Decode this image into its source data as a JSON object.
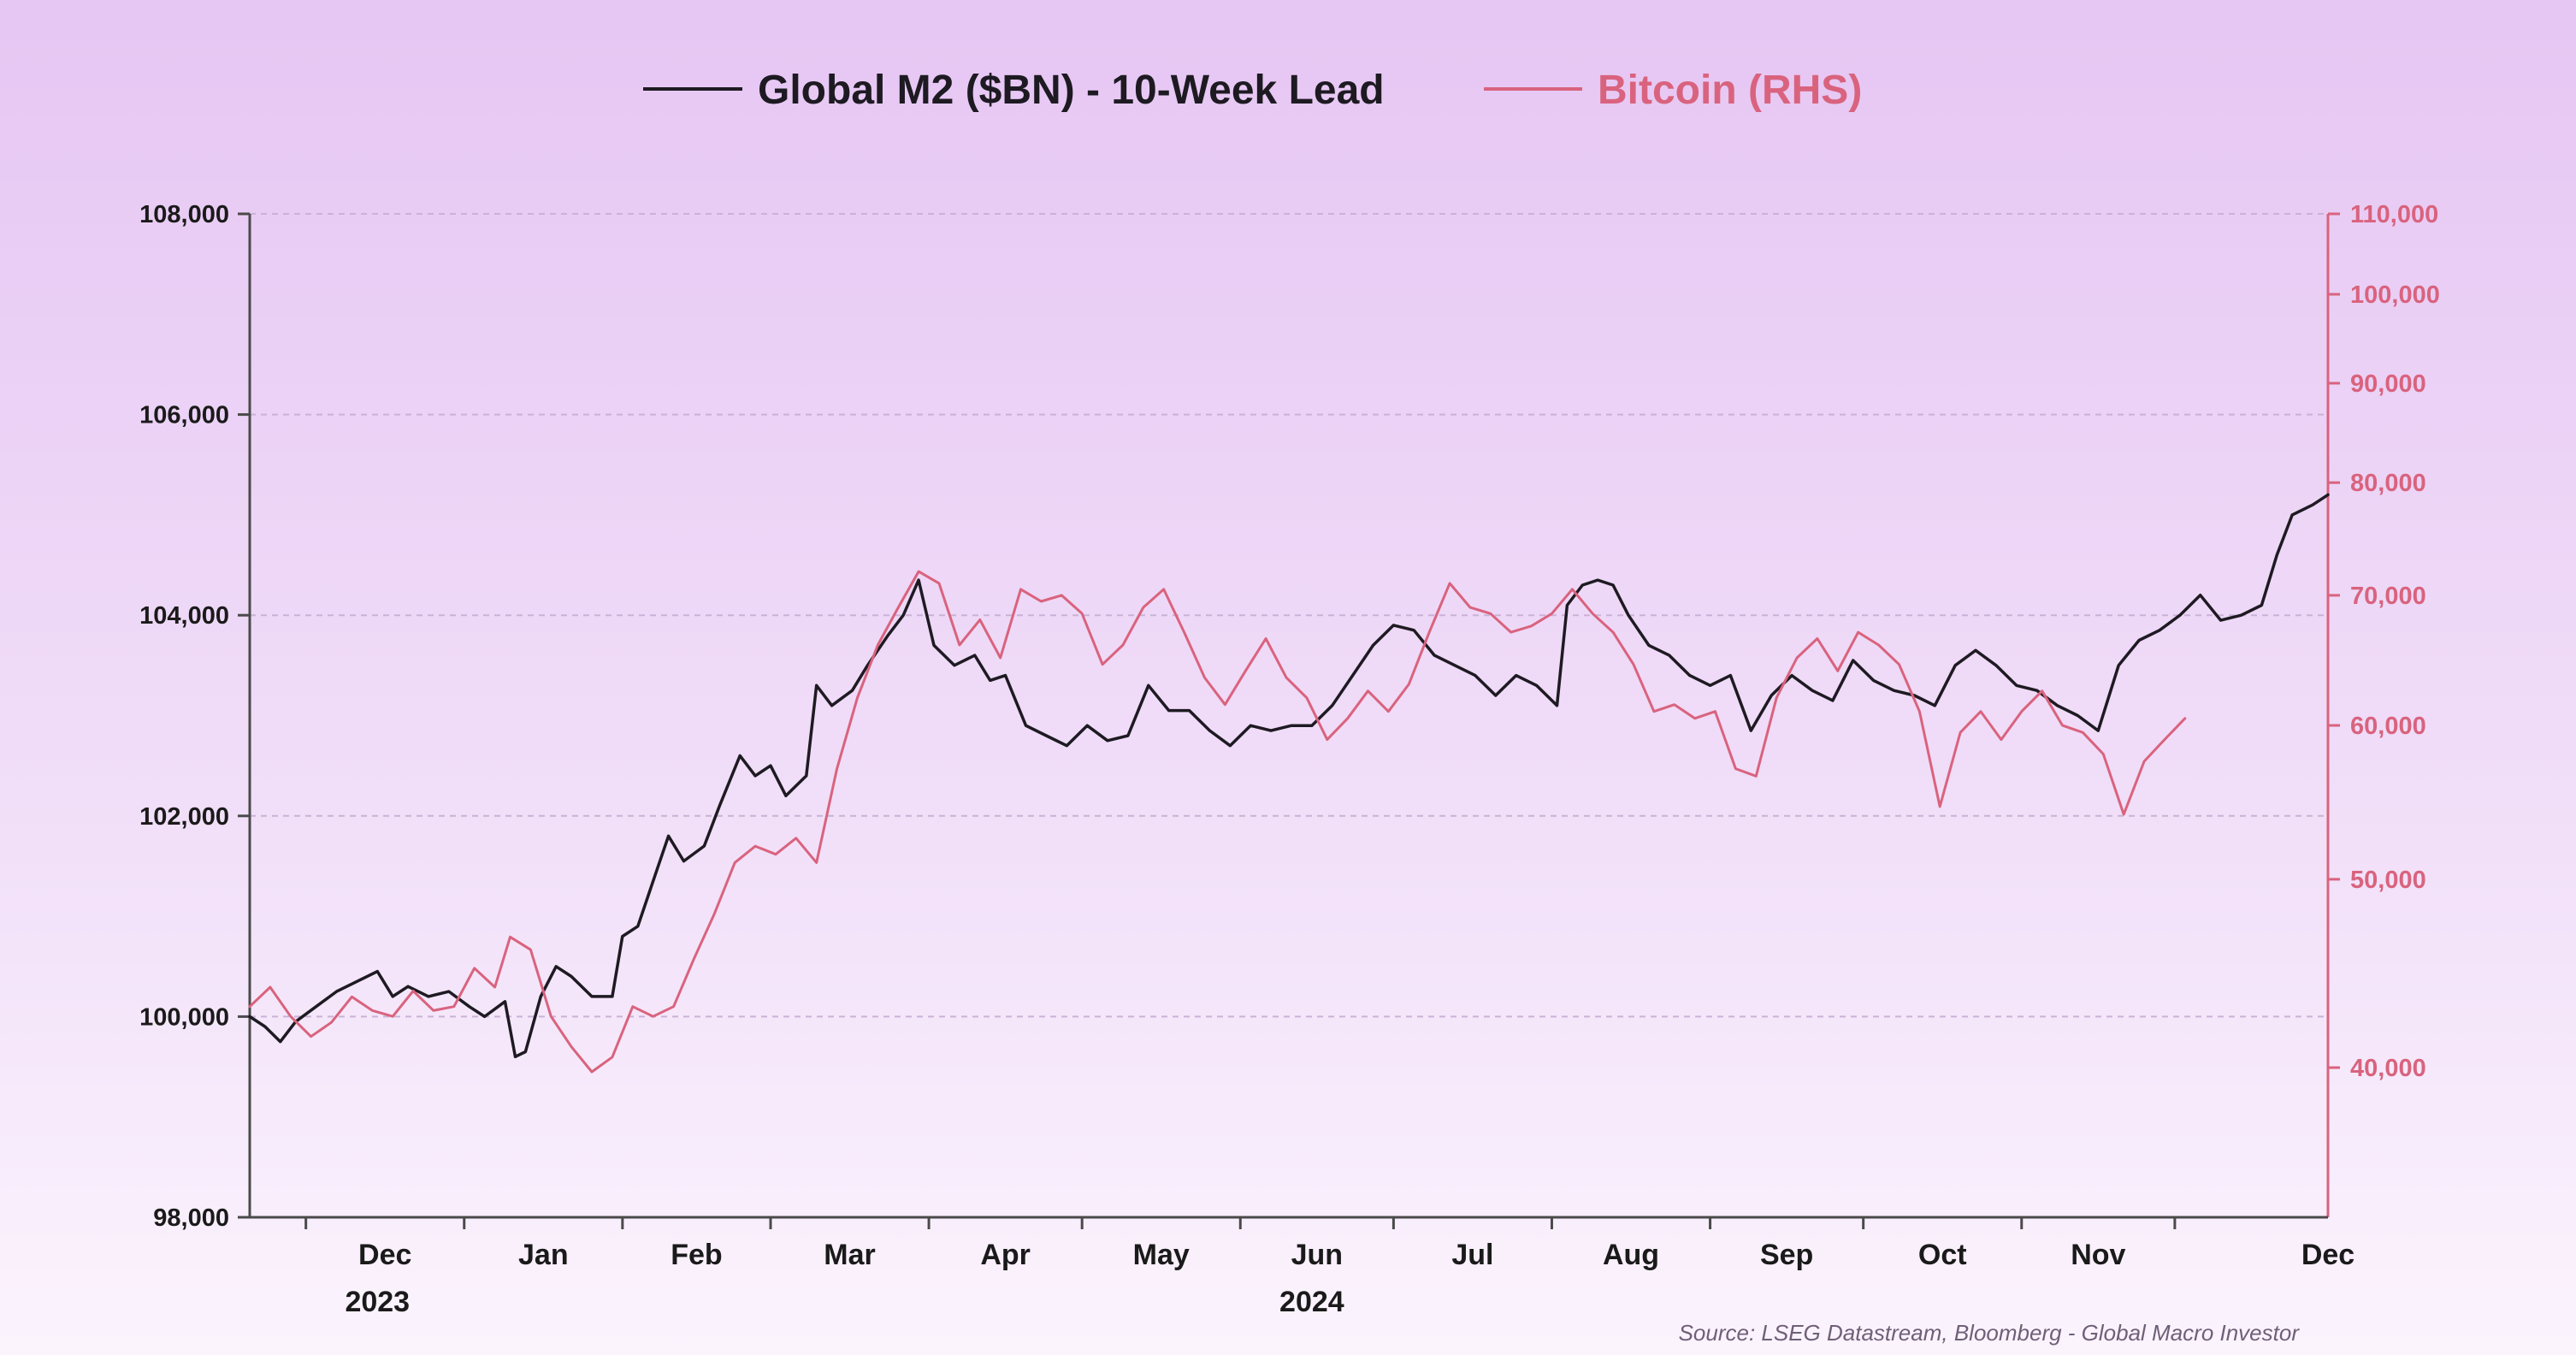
{
  "colors": {
    "m2": "#1e1a22",
    "btc": "#d9637e",
    "grid": "#c9b2d6",
    "axis": "#4a4a4a"
  },
  "legend": {
    "m2_label": "Global M2 ($BN) - 10-Week Lead",
    "btc_label": "Bitcoin (RHS)"
  },
  "source": "Source: LSEG Datastream, Bloomberg - Global Macro Investor",
  "chart_data": {
    "type": "line",
    "title": "",
    "legend_position": "top-center",
    "grid": "horizontal dashed at left-axis ticks",
    "x_range": [
      "2023-11-20",
      "2024-12-31"
    ],
    "x_ticks": [
      {
        "label": "Dec",
        "date": "2023-12-01"
      },
      {
        "label": "Jan",
        "date": "2024-01-01"
      },
      {
        "label": "Feb",
        "date": "2024-02-01"
      },
      {
        "label": "Mar",
        "date": "2024-03-01"
      },
      {
        "label": "Apr",
        "date": "2024-04-01"
      },
      {
        "label": "May",
        "date": "2024-05-01"
      },
      {
        "label": "Jun",
        "date": "2024-06-01"
      },
      {
        "label": "Jul",
        "date": "2024-07-01"
      },
      {
        "label": "Aug",
        "date": "2024-08-01"
      },
      {
        "label": "Sep",
        "date": "2024-09-01"
      },
      {
        "label": "Oct",
        "date": "2024-10-01"
      },
      {
        "label": "Nov",
        "date": "2024-11-01"
      },
      {
        "label": "Dec",
        "date": "2024-12-01"
      }
    ],
    "year_labels": [
      {
        "label": "2023",
        "date": "2023-12-15"
      },
      {
        "label": "2024",
        "date": "2024-06-15"
      }
    ],
    "y_left": {
      "range": [
        98000,
        108000
      ],
      "ticks": [
        98000,
        100000,
        102000,
        104000,
        106000,
        108000
      ],
      "tick_labels": [
        "98,000",
        "100,000",
        "102,000",
        "104,000",
        "106,000",
        "108,000"
      ]
    },
    "y_right": {
      "scale": "log",
      "range": [
        33500,
        110000
      ],
      "ticks": [
        40000,
        50000,
        60000,
        70000,
        80000,
        90000,
        100000,
        110000
      ],
      "tick_labels": [
        "40,000",
        "50,000",
        "60,000",
        "70,000",
        "80,000",
        "90,000",
        "100,000",
        "110,000"
      ]
    },
    "series": [
      {
        "name": "Global M2 ($BN) - 10-Week Lead",
        "axis": "left",
        "points": [
          [
            "2023-11-20",
            100000
          ],
          [
            "2023-11-23",
            99900
          ],
          [
            "2023-11-26",
            99750
          ],
          [
            "2023-11-29",
            99950
          ],
          [
            "2023-12-03",
            100100
          ],
          [
            "2023-12-07",
            100250
          ],
          [
            "2023-12-11",
            100350
          ],
          [
            "2023-12-15",
            100450
          ],
          [
            "2023-12-18",
            100200
          ],
          [
            "2023-12-21",
            100300
          ],
          [
            "2023-12-25",
            100200
          ],
          [
            "2023-12-29",
            100250
          ],
          [
            "2024-01-02",
            100100
          ],
          [
            "2024-01-05",
            100000
          ],
          [
            "2024-01-09",
            100150
          ],
          [
            "2024-01-11",
            99600
          ],
          [
            "2024-01-13",
            99650
          ],
          [
            "2024-01-16",
            100200
          ],
          [
            "2024-01-19",
            100500
          ],
          [
            "2024-01-22",
            100400
          ],
          [
            "2024-01-26",
            100200
          ],
          [
            "2024-01-30",
            100200
          ],
          [
            "2024-02-01",
            100800
          ],
          [
            "2024-02-04",
            100900
          ],
          [
            "2024-02-08",
            101500
          ],
          [
            "2024-02-10",
            101800
          ],
          [
            "2024-02-13",
            101550
          ],
          [
            "2024-02-17",
            101700
          ],
          [
            "2024-02-20",
            102100
          ],
          [
            "2024-02-24",
            102600
          ],
          [
            "2024-02-27",
            102400
          ],
          [
            "2024-03-01",
            102500
          ],
          [
            "2024-03-04",
            102200
          ],
          [
            "2024-03-08",
            102400
          ],
          [
            "2024-03-10",
            103300
          ],
          [
            "2024-03-13",
            103100
          ],
          [
            "2024-03-17",
            103250
          ],
          [
            "2024-03-20",
            103500
          ],
          [
            "2024-03-24",
            103800
          ],
          [
            "2024-03-27",
            104000
          ],
          [
            "2024-03-30",
            104350
          ],
          [
            "2024-04-02",
            103700
          ],
          [
            "2024-04-06",
            103500
          ],
          [
            "2024-04-10",
            103600
          ],
          [
            "2024-04-13",
            103350
          ],
          [
            "2024-04-16",
            103400
          ],
          [
            "2024-04-20",
            102900
          ],
          [
            "2024-04-24",
            102800
          ],
          [
            "2024-04-28",
            102700
          ],
          [
            "2024-05-02",
            102900
          ],
          [
            "2024-05-06",
            102750
          ],
          [
            "2024-05-10",
            102800
          ],
          [
            "2024-05-14",
            103300
          ],
          [
            "2024-05-18",
            103050
          ],
          [
            "2024-05-22",
            103050
          ],
          [
            "2024-05-26",
            102850
          ],
          [
            "2024-05-30",
            102700
          ],
          [
            "2024-06-03",
            102900
          ],
          [
            "2024-06-07",
            102850
          ],
          [
            "2024-06-11",
            102900
          ],
          [
            "2024-06-15",
            102900
          ],
          [
            "2024-06-19",
            103100
          ],
          [
            "2024-06-23",
            103400
          ],
          [
            "2024-06-27",
            103700
          ],
          [
            "2024-07-01",
            103900
          ],
          [
            "2024-07-05",
            103850
          ],
          [
            "2024-07-09",
            103600
          ],
          [
            "2024-07-13",
            103500
          ],
          [
            "2024-07-17",
            103400
          ],
          [
            "2024-07-21",
            103200
          ],
          [
            "2024-07-25",
            103400
          ],
          [
            "2024-07-29",
            103300
          ],
          [
            "2024-08-02",
            103100
          ],
          [
            "2024-08-04",
            104100
          ],
          [
            "2024-08-07",
            104300
          ],
          [
            "2024-08-10",
            104350
          ],
          [
            "2024-08-13",
            104300
          ],
          [
            "2024-08-16",
            104000
          ],
          [
            "2024-08-20",
            103700
          ],
          [
            "2024-08-24",
            103600
          ],
          [
            "2024-08-28",
            103400
          ],
          [
            "2024-09-01",
            103300
          ],
          [
            "2024-09-05",
            103400
          ],
          [
            "2024-09-09",
            102850
          ],
          [
            "2024-09-13",
            103200
          ],
          [
            "2024-09-17",
            103400
          ],
          [
            "2024-09-21",
            103250
          ],
          [
            "2024-09-25",
            103150
          ],
          [
            "2024-09-29",
            103550
          ],
          [
            "2024-10-03",
            103350
          ],
          [
            "2024-10-07",
            103250
          ],
          [
            "2024-10-11",
            103200
          ],
          [
            "2024-10-15",
            103100
          ],
          [
            "2024-10-19",
            103500
          ],
          [
            "2024-10-23",
            103650
          ],
          [
            "2024-10-27",
            103500
          ],
          [
            "2024-10-31",
            103300
          ],
          [
            "2024-11-04",
            103250
          ],
          [
            "2024-11-08",
            103100
          ],
          [
            "2024-11-12",
            103000
          ],
          [
            "2024-11-16",
            102850
          ],
          [
            "2024-11-20",
            103500
          ],
          [
            "2024-11-24",
            103750
          ],
          [
            "2024-11-28",
            103850
          ],
          [
            "2024-12-02",
            104000
          ],
          [
            "2024-12-06",
            104200
          ],
          [
            "2024-12-10",
            103950
          ],
          [
            "2024-12-14",
            104000
          ],
          [
            "2024-12-18",
            104100
          ],
          [
            "2024-12-21",
            104600
          ],
          [
            "2024-12-24",
            105000
          ],
          [
            "2024-12-28",
            105100
          ],
          [
            "2024-12-31",
            105200
          ]
        ]
      },
      {
        "name": "Bitcoin (RHS)",
        "axis": "right",
        "points": [
          [
            "2023-11-20",
            43000
          ],
          [
            "2023-11-24",
            44000
          ],
          [
            "2023-11-28",
            42500
          ],
          [
            "2023-12-02",
            41500
          ],
          [
            "2023-12-06",
            42200
          ],
          [
            "2023-12-10",
            43500
          ],
          [
            "2023-12-14",
            42800
          ],
          [
            "2023-12-18",
            42500
          ],
          [
            "2023-12-22",
            43800
          ],
          [
            "2023-12-26",
            42800
          ],
          [
            "2023-12-30",
            43000
          ],
          [
            "2024-01-03",
            45000
          ],
          [
            "2024-01-07",
            44000
          ],
          [
            "2024-01-10",
            46700
          ],
          [
            "2024-01-14",
            46000
          ],
          [
            "2024-01-18",
            42500
          ],
          [
            "2024-01-22",
            41000
          ],
          [
            "2024-01-26",
            39800
          ],
          [
            "2024-01-30",
            40500
          ],
          [
            "2024-02-03",
            43000
          ],
          [
            "2024-02-07",
            42500
          ],
          [
            "2024-02-11",
            43000
          ],
          [
            "2024-02-15",
            45500
          ],
          [
            "2024-02-19",
            48000
          ],
          [
            "2024-02-23",
            51000
          ],
          [
            "2024-02-27",
            52000
          ],
          [
            "2024-03-02",
            51500
          ],
          [
            "2024-03-06",
            52500
          ],
          [
            "2024-03-10",
            51000
          ],
          [
            "2024-03-14",
            57000
          ],
          [
            "2024-03-18",
            62000
          ],
          [
            "2024-03-22",
            66000
          ],
          [
            "2024-03-26",
            69000
          ],
          [
            "2024-03-30",
            72000
          ],
          [
            "2024-04-03",
            71000
          ],
          [
            "2024-04-07",
            66000
          ],
          [
            "2024-04-11",
            68000
          ],
          [
            "2024-04-15",
            65000
          ],
          [
            "2024-04-19",
            70500
          ],
          [
            "2024-04-23",
            69500
          ],
          [
            "2024-04-27",
            70000
          ],
          [
            "2024-05-01",
            68500
          ],
          [
            "2024-05-05",
            64500
          ],
          [
            "2024-05-09",
            66000
          ],
          [
            "2024-05-13",
            69000
          ],
          [
            "2024-05-17",
            70500
          ],
          [
            "2024-05-21",
            67000
          ],
          [
            "2024-05-25",
            63500
          ],
          [
            "2024-05-29",
            61500
          ],
          [
            "2024-06-02",
            64000
          ],
          [
            "2024-06-06",
            66500
          ],
          [
            "2024-06-10",
            63500
          ],
          [
            "2024-06-14",
            62000
          ],
          [
            "2024-06-18",
            59000
          ],
          [
            "2024-06-22",
            60500
          ],
          [
            "2024-06-26",
            62500
          ],
          [
            "2024-06-30",
            61000
          ],
          [
            "2024-07-04",
            63000
          ],
          [
            "2024-07-08",
            67000
          ],
          [
            "2024-07-12",
            71000
          ],
          [
            "2024-07-16",
            69000
          ],
          [
            "2024-07-20",
            68500
          ],
          [
            "2024-07-24",
            67000
          ],
          [
            "2024-07-28",
            67500
          ],
          [
            "2024-08-01",
            68500
          ],
          [
            "2024-08-05",
            70500
          ],
          [
            "2024-08-09",
            68500
          ],
          [
            "2024-08-13",
            67000
          ],
          [
            "2024-08-17",
            64500
          ],
          [
            "2024-08-21",
            61000
          ],
          [
            "2024-08-25",
            61500
          ],
          [
            "2024-08-29",
            60500
          ],
          [
            "2024-09-02",
            61000
          ],
          [
            "2024-09-06",
            57000
          ],
          [
            "2024-09-10",
            56500
          ],
          [
            "2024-09-14",
            62000
          ],
          [
            "2024-09-18",
            65000
          ],
          [
            "2024-09-22",
            66500
          ],
          [
            "2024-09-26",
            64000
          ],
          [
            "2024-09-30",
            67000
          ],
          [
            "2024-10-04",
            66000
          ],
          [
            "2024-10-08",
            64500
          ],
          [
            "2024-10-12",
            61000
          ],
          [
            "2024-10-16",
            54500
          ],
          [
            "2024-10-20",
            59500
          ],
          [
            "2024-10-24",
            61000
          ],
          [
            "2024-10-28",
            59000
          ],
          [
            "2024-11-01",
            61000
          ],
          [
            "2024-11-05",
            62500
          ],
          [
            "2024-11-09",
            60000
          ],
          [
            "2024-11-13",
            59500
          ],
          [
            "2024-11-17",
            58000
          ],
          [
            "2024-11-21",
            54000
          ],
          [
            "2024-11-25",
            57500
          ],
          [
            "2024-11-29",
            59000
          ],
          [
            "2024-12-03",
            60500
          ]
        ]
      }
    ]
  }
}
